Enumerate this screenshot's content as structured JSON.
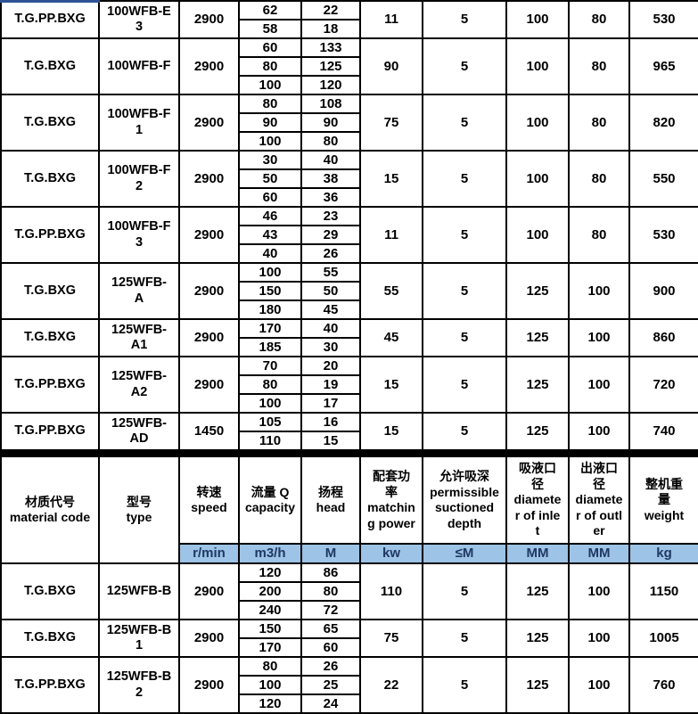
{
  "colors": {
    "unit_row_bg": "#9DC3E6",
    "unit_row_text": "#1F3864",
    "accent_line": "#2E5395",
    "border": "#000000"
  },
  "header": {
    "cells": [
      {
        "zh": "材质代号",
        "en": "material code",
        "unit": ""
      },
      {
        "zh": "型号",
        "en": "type",
        "unit": ""
      },
      {
        "zh": "转速",
        "en": "speed",
        "unit": "r/min"
      },
      {
        "zh": "流量 Q",
        "en": "capacity",
        "unit": "m3/h"
      },
      {
        "zh": "扬程",
        "en": "head",
        "unit": "M"
      },
      {
        "zh": "配套功\n率",
        "en": "matchin\ng power",
        "unit": "kw"
      },
      {
        "zh": "允许吸深",
        "en": "permissible\nsuctioned\ndepth",
        "unit": "≤M"
      },
      {
        "zh": "吸液口\n径",
        "en": "diamete\nr of inle\nt",
        "unit": "MM"
      },
      {
        "zh": "出液口\n径",
        "en": "diamete\nr of outl\ner",
        "unit": "MM"
      },
      {
        "zh": "整机重\n量",
        "en": "weight",
        "unit": "kg"
      }
    ]
  },
  "sections": {
    "top_rows": [
      {
        "material": "T.G.PP.BXG",
        "model": "100WFB-E\n3",
        "speed": "2900",
        "flow_head_points": [
          {
            "flow": "62",
            "head": "22"
          },
          {
            "flow": "58",
            "head": "18"
          }
        ],
        "power": "11",
        "depth": "5",
        "inlet": "100",
        "outlet": "80",
        "weight": "530"
      },
      {
        "material": "T.G.BXG",
        "model": "100WFB-F",
        "speed": "2900",
        "flow_head_points": [
          {
            "flow": "60",
            "head": "133"
          },
          {
            "flow": "80",
            "head": "125"
          },
          {
            "flow": "100",
            "head": "120"
          }
        ],
        "power": "90",
        "depth": "5",
        "inlet": "100",
        "outlet": "80",
        "weight": "965"
      },
      {
        "material": "T.G.BXG",
        "model": "100WFB-F\n1",
        "speed": "2900",
        "flow_head_points": [
          {
            "flow": "80",
            "head": "108"
          },
          {
            "flow": "90",
            "head": "90"
          },
          {
            "flow": "100",
            "head": "80"
          }
        ],
        "power": "75",
        "depth": "5",
        "inlet": "100",
        "outlet": "80",
        "weight": "820"
      },
      {
        "material": "T.G.BXG",
        "model": "100WFB-F\n2",
        "speed": "2900",
        "flow_head_points": [
          {
            "flow": "30",
            "head": "40"
          },
          {
            "flow": "50",
            "head": "38"
          },
          {
            "flow": "60",
            "head": "36"
          }
        ],
        "power": "15",
        "depth": "5",
        "inlet": "100",
        "outlet": "80",
        "weight": "550"
      },
      {
        "material": "T.G.PP.BXG",
        "model": "100WFB-F\n3",
        "speed": "2900",
        "flow_head_points": [
          {
            "flow": "46",
            "head": "23"
          },
          {
            "flow": "43",
            "head": "29"
          },
          {
            "flow": "40",
            "head": "26"
          }
        ],
        "power": "11",
        "depth": "5",
        "inlet": "100",
        "outlet": "80",
        "weight": "530"
      },
      {
        "material": "T.G.BXG",
        "model": "125WFB-\nA",
        "speed": "2900",
        "flow_head_points": [
          {
            "flow": "100",
            "head": "55"
          },
          {
            "flow": "150",
            "head": "50"
          },
          {
            "flow": "180",
            "head": "45"
          }
        ],
        "power": "55",
        "depth": "5",
        "inlet": "125",
        "outlet": "100",
        "weight": "900"
      },
      {
        "material": "T.G.BXG",
        "model": "125WFB-\nA1",
        "speed": "2900",
        "flow_head_points": [
          {
            "flow": "170",
            "head": "40"
          },
          {
            "flow": "185",
            "head": "30"
          }
        ],
        "power": "45",
        "depth": "5",
        "inlet": "125",
        "outlet": "100",
        "weight": "860"
      },
      {
        "material": "T.G.PP.BXG",
        "model": "125WFB-\nA2",
        "speed": "2900",
        "flow_head_points": [
          {
            "flow": "70",
            "head": "20"
          },
          {
            "flow": "80",
            "head": "19"
          },
          {
            "flow": "100",
            "head": "17"
          }
        ],
        "power": "15",
        "depth": "5",
        "inlet": "125",
        "outlet": "100",
        "weight": "720"
      },
      {
        "material": "T.G.PP.BXG",
        "model": "125WFB-\nAD",
        "speed": "1450",
        "flow_head_points": [
          {
            "flow": "105",
            "head": "16"
          },
          {
            "flow": "110",
            "head": "15"
          }
        ],
        "power": "15",
        "depth": "5",
        "inlet": "125",
        "outlet": "100",
        "weight": "740"
      }
    ],
    "bottom_rows": [
      {
        "material": "T.G.BXG",
        "model": "125WFB-B",
        "speed": "2900",
        "flow_head_points": [
          {
            "flow": "120",
            "head": "86"
          },
          {
            "flow": "200",
            "head": "80"
          },
          {
            "flow": "240",
            "head": "72"
          }
        ],
        "power": "110",
        "depth": "5",
        "inlet": "125",
        "outlet": "100",
        "weight": "1150"
      },
      {
        "material": "T.G.BXG",
        "model": "125WFB-B\n1",
        "speed": "2900",
        "flow_head_points": [
          {
            "flow": "150",
            "head": "65"
          },
          {
            "flow": "170",
            "head": "60"
          }
        ],
        "power": "75",
        "depth": "5",
        "inlet": "125",
        "outlet": "100",
        "weight": "1005"
      },
      {
        "material": "T.G.PP.BXG",
        "model": "125WFB-B\n2",
        "speed": "2900",
        "flow_head_points": [
          {
            "flow": "80",
            "head": "26"
          },
          {
            "flow": "100",
            "head": "25"
          },
          {
            "flow": "120",
            "head": "24"
          }
        ],
        "power": "22",
        "depth": "5",
        "inlet": "125",
        "outlet": "100",
        "weight": "760"
      }
    ]
  }
}
